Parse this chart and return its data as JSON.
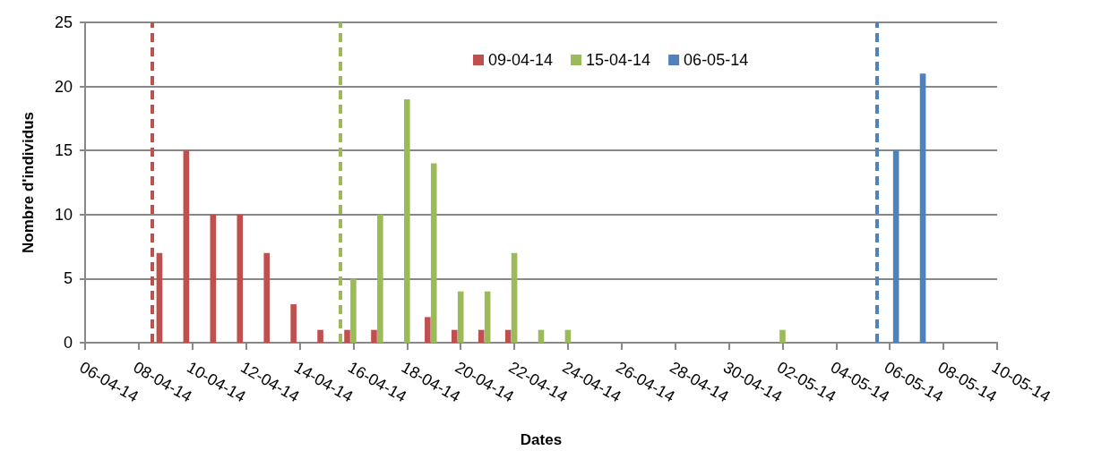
{
  "chart_data": {
    "type": "bar",
    "xlabel": "Dates",
    "ylabel": "Nombre d'individus",
    "xlim": [
      "--04-06",
      "--05-10"
    ],
    "xticks": [
      {
        "value": "--04-06",
        "label": "06-04-14"
      },
      {
        "value": "--04-08",
        "label": "08-04-14"
      },
      {
        "value": "--04-10",
        "label": "10-04-14"
      },
      {
        "value": "--04-12",
        "label": "12-04-14"
      },
      {
        "value": "--04-14",
        "label": "14-04-14"
      },
      {
        "value": "--04-16",
        "label": "16-04-14"
      },
      {
        "value": "--04-18",
        "label": "18-04-14"
      },
      {
        "value": "--04-20",
        "label": "20-04-14"
      },
      {
        "value": "--04-22",
        "label": "22-04-14"
      },
      {
        "value": "--04-24",
        "label": "24-04-14"
      },
      {
        "value": "--04-26",
        "label": "26-04-14"
      },
      {
        "value": "--04-28",
        "label": "28-04-14"
      },
      {
        "value": "--04-30",
        "label": "30-04-14"
      },
      {
        "value": "--05-02",
        "label": "02-05-14"
      },
      {
        "value": "--05-04",
        "label": "04-05-14"
      },
      {
        "value": "--05-06",
        "label": "06-05-14"
      },
      {
        "value": "--05-08",
        "label": "08-05-14"
      },
      {
        "value": "--05-10",
        "label": "10-05-14"
      }
    ],
    "ylim": [
      0,
      25
    ],
    "yticks": [
      0,
      5,
      10,
      15,
      20,
      25
    ],
    "grid": "y",
    "legend": "top",
    "series": [
      {
        "name": "09-04-14",
        "color": "#c0504d",
        "x": [
          "--04-09",
          "--04-10",
          "--04-11",
          "--04-12",
          "--04-13",
          "--04-14",
          "--04-15",
          "--04-16",
          "--04-17",
          "--04-19",
          "--04-20",
          "--04-21",
          "--04-22"
        ],
        "values": [
          7,
          15,
          10,
          10,
          7,
          3,
          1,
          1,
          1,
          2,
          1,
          1,
          1
        ]
      },
      {
        "name": "15-04-14",
        "color": "#9bbb59",
        "x": [
          "--04-16",
          "--04-17",
          "--04-18",
          "--04-19",
          "--04-20",
          "--04-21",
          "--04-22",
          "--04-23",
          "--04-24",
          "--05-02"
        ],
        "values": [
          5,
          10,
          19,
          14,
          4,
          4,
          7,
          1,
          1,
          1
        ]
      },
      {
        "name": "06-05-14",
        "color": "#4f81bd",
        "x": [
          "--05-06",
          "--05-07"
        ],
        "values": [
          15,
          21
        ]
      }
    ],
    "ref_lines": [
      {
        "axis": "x",
        "value": "--04-08T12:00",
        "color": "#c0504d",
        "line_style": "dashed"
      },
      {
        "axis": "x",
        "value": "--04-15T12:00",
        "color": "#9bbb59",
        "line_style": "dashed"
      },
      {
        "axis": "x",
        "value": "--05-05T12:00",
        "color": "#4f81bd",
        "line_style": "dashed"
      }
    ]
  }
}
